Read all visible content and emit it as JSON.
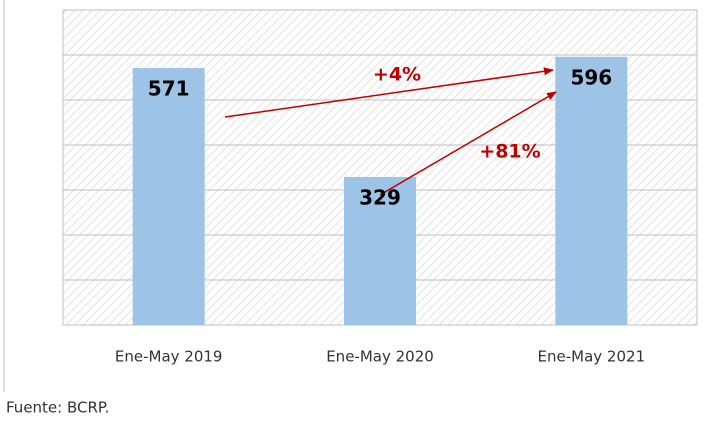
{
  "chart_data": {
    "type": "bar",
    "categories": [
      "Ene-May 2019",
      "Ene-May 2020",
      "Ene-May 2021"
    ],
    "values": [
      571,
      329,
      596
    ],
    "color": "#9dc3e6",
    "ylim": [
      0,
      700
    ],
    "yticks": [
      0,
      100,
      200,
      300,
      400,
      500,
      600,
      700
    ],
    "grid": true,
    "annotations": [
      "+4%",
      "+81%"
    ],
    "source": "Fuente: BCRP."
  }
}
